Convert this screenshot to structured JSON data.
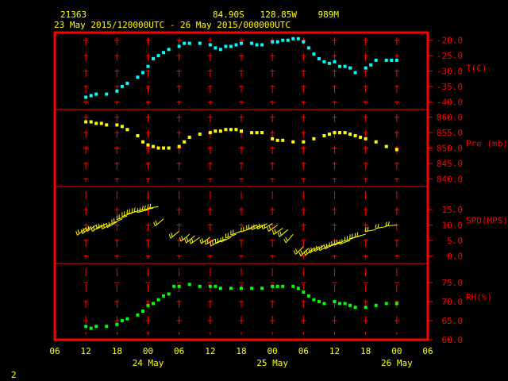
{
  "header": {
    "station_id": "21363",
    "location": "84.90S   128.85W    989M",
    "time_range": "23 May 2015/120000UTC - 26 May 2015/000000UTC"
  },
  "footer": {
    "page_number": "2"
  },
  "colors": {
    "background": "#000000",
    "header_text": "#ffff00",
    "frame": "#ff0000",
    "labels": "#ff0000",
    "date_labels": "#ffff00",
    "temperature": "#00ffff",
    "pressure": "#ffff00",
    "wind": "#ffff00",
    "humidity": "#00ff00"
  },
  "x_axis": {
    "range_hours": [
      -6,
      66
    ],
    "tick_labels": [
      {
        "hour": -6,
        "label": "06"
      },
      {
        "hour": 0,
        "label": "12"
      },
      {
        "hour": 6,
        "label": "18"
      },
      {
        "hour": 12,
        "label": "00"
      },
      {
        "hour": 18,
        "label": "06"
      },
      {
        "hour": 24,
        "label": "12"
      },
      {
        "hour": 30,
        "label": "18"
      },
      {
        "hour": 36,
        "label": "00"
      },
      {
        "hour": 42,
        "label": "06"
      },
      {
        "hour": 48,
        "label": "12"
      },
      {
        "hour": 54,
        "label": "18"
      },
      {
        "hour": 60,
        "label": "00"
      },
      {
        "hour": 66,
        "label": "06"
      }
    ],
    "date_labels": [
      {
        "hour": 12,
        "label": "24 May"
      },
      {
        "hour": 36,
        "label": "25 May"
      },
      {
        "hour": 60,
        "label": "26 May"
      }
    ]
  },
  "chart_data": {
    "type": "scatter",
    "panels": [
      {
        "id": "temperature",
        "label": "T(C)",
        "ylim": [
          -42.5,
          -17.5
        ],
        "ticks": [
          -20.0,
          -25.0,
          -30.0,
          -35.0,
          -40.0
        ],
        "tick_labels": [
          "-20.0",
          "-25.0",
          "-30.0",
          "-35.0",
          "-40.0"
        ],
        "x": [
          0,
          1,
          2,
          4,
          6,
          7,
          8,
          10,
          11,
          12,
          13,
          14,
          15,
          16,
          18,
          19,
          20,
          22,
          24,
          25,
          26,
          27,
          28,
          29,
          30,
          32,
          33,
          34,
          36,
          37,
          38,
          39,
          40,
          41,
          42,
          43,
          44,
          45,
          46,
          47,
          48,
          49,
          50,
          51,
          52,
          54,
          55,
          56,
          58,
          59,
          60
        ],
        "values": [
          -38.5,
          -38,
          -37.5,
          -37.5,
          -36.5,
          -35,
          -34,
          -32,
          -30.5,
          -28.5,
          -26,
          -25,
          -24,
          -23,
          -22,
          -21,
          -21,
          -21,
          -21.5,
          -22.5,
          -23,
          -22,
          -22,
          -21.5,
          -21,
          -21,
          -21.5,
          -21.5,
          -20.5,
          -20.5,
          -20,
          -20,
          -19.5,
          -19.5,
          -20.5,
          -22.5,
          -24.5,
          -26,
          -27,
          -27.5,
          -27,
          -28.5,
          -28.5,
          -29,
          -30.5,
          -29,
          -28,
          -26.5,
          -26.5,
          -26.5,
          -26.5
        ]
      },
      {
        "id": "pressure",
        "label": "Pre (mb)",
        "ylim": [
          837.5,
          862.5
        ],
        "ticks": [
          860.0,
          855.0,
          850.0,
          845.0,
          840.0
        ],
        "tick_labels": [
          "860.0",
          "855.0",
          "850.0",
          "845.0",
          "840.0"
        ],
        "x": [
          0,
          1,
          2,
          3,
          4,
          6,
          7,
          8,
          10,
          11,
          12,
          13,
          14,
          15,
          16,
          18,
          19,
          20,
          22,
          24,
          25,
          26,
          27,
          28,
          29,
          30,
          32,
          33,
          34,
          36,
          37,
          38,
          40,
          42,
          44,
          46,
          47,
          48,
          49,
          50,
          51,
          52,
          53,
          54,
          56,
          58,
          60
        ],
        "values": [
          858.5,
          858.5,
          858,
          858,
          857.5,
          857.5,
          857,
          856,
          854,
          852,
          851,
          850.5,
          850,
          850,
          850,
          850.5,
          852,
          853.5,
          854.5,
          855,
          855.5,
          855.5,
          856,
          856,
          856,
          855.5,
          855,
          855,
          855,
          853,
          852.5,
          852.5,
          852,
          852,
          853,
          854,
          854.5,
          855,
          855,
          855,
          854.5,
          854,
          853.5,
          853,
          852,
          850.5,
          849.5
        ]
      },
      {
        "id": "wind_speed",
        "label": "SPD(MPS)",
        "ylim": [
          -2.5,
          22.5
        ],
        "ticks": [
          15.0,
          10.0,
          5.0,
          0.0
        ],
        "tick_labels": [
          "15.0",
          "10.0",
          "5.0",
          "0.0"
        ],
        "x": [
          0,
          1,
          2,
          3,
          4,
          5,
          6,
          7,
          8,
          9,
          10,
          11,
          12,
          13,
          14,
          15,
          18,
          20,
          21,
          22,
          24,
          25,
          26,
          27,
          28,
          29,
          30,
          32,
          33,
          34,
          35,
          36,
          37,
          38,
          39,
          40,
          42,
          43,
          44,
          45,
          46,
          47,
          48,
          49,
          50,
          51,
          52,
          53,
          54,
          56,
          58,
          60
        ],
        "values": [
          9,
          9.5,
          10,
          10,
          10.5,
          10.5,
          11,
          12,
          13,
          14,
          14.5,
          15,
          15,
          15.5,
          16,
          12,
          8,
          7,
          6.5,
          6,
          6,
          5.5,
          5,
          5.5,
          6,
          7,
          8,
          9,
          10,
          10,
          10.5,
          10.5,
          10,
          9,
          8.5,
          7,
          3,
          2.5,
          2.5,
          3,
          3.5,
          3.5,
          4,
          4.5,
          5,
          5,
          6,
          6.5,
          7,
          8.5,
          9.5,
          10
        ],
        "direction_deg": [
          230,
          230,
          235,
          235,
          240,
          240,
          240,
          245,
          250,
          250,
          255,
          255,
          255,
          260,
          260,
          230,
          230,
          230,
          230,
          235,
          235,
          240,
          240,
          245,
          245,
          250,
          250,
          250,
          245,
          245,
          240,
          240,
          235,
          235,
          230,
          220,
          225,
          225,
          230,
          235,
          235,
          240,
          240,
          245,
          245,
          250,
          250,
          255,
          255,
          260,
          260,
          265
        ]
      },
      {
        "id": "humidity",
        "label": "RH(%)",
        "ylim": [
          60.0,
          80.0
        ],
        "ticks": [
          75.0,
          70.0,
          65.0,
          60.0
        ],
        "tick_labels": [
          "75.0",
          "70.0",
          "65.0",
          "60.0"
        ],
        "x": [
          0,
          1,
          2,
          4,
          6,
          7,
          8,
          10,
          11,
          12,
          13,
          14,
          15,
          16,
          17,
          18,
          20,
          22,
          24,
          25,
          26,
          28,
          30,
          32,
          34,
          36,
          37,
          38,
          40,
          41,
          42,
          43,
          44,
          45,
          46,
          48,
          49,
          50,
          51,
          52,
          54,
          56,
          58,
          60
        ],
        "values": [
          63.5,
          63,
          63.5,
          63.5,
          64,
          65,
          65.5,
          66.5,
          67.5,
          69,
          69.5,
          70.5,
          71.5,
          72,
          74,
          74,
          74.5,
          74,
          74,
          74,
          73.5,
          73.5,
          73.5,
          73.5,
          73.5,
          74,
          74,
          74,
          74,
          73.5,
          72.5,
          71.5,
          70.5,
          70,
          69.5,
          70,
          69.5,
          69.5,
          69,
          68.5,
          68.5,
          69,
          69.5,
          69.5
        ]
      }
    ]
  }
}
